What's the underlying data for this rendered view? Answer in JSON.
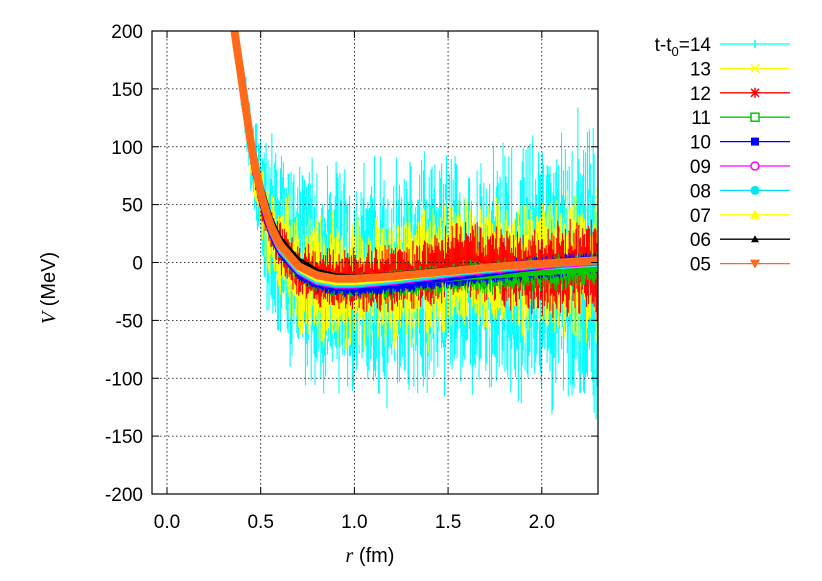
{
  "chart_data": {
    "type": "scatter",
    "title": "",
    "xlabel_var": "r",
    "xlabel_unit": "(fm)",
    "ylabel_var": "V",
    "ylabel_unit": "(MeV)",
    "xlim": [
      -0.08,
      2.3
    ],
    "ylim": [
      -200,
      200
    ],
    "xticks": [
      0.0,
      0.5,
      1.0,
      1.5,
      2.0
    ],
    "xtick_labels": [
      "0.0",
      "0.5",
      "1.0",
      "1.5",
      "2.0"
    ],
    "yticks": [
      -200,
      -150,
      -100,
      -50,
      0,
      50,
      100,
      150,
      200
    ],
    "ytick_labels": [
      "-200",
      "-150",
      "-100",
      "-50",
      "0",
      "50",
      "100",
      "150",
      "200"
    ],
    "grid": true,
    "legend_position": "outside-right",
    "legend_title_prefix": "t-t",
    "legend_title_subscript": "0",
    "legend_title_suffix": "=14",
    "series": [
      {
        "name": "14",
        "color": "#00ffff",
        "marker": "plus",
        "x": [
          0.36,
          0.4,
          0.45,
          0.5,
          0.55,
          0.6,
          0.7,
          0.8,
          0.9,
          1.0,
          1.2,
          1.4,
          1.6,
          1.8,
          2.0,
          2.2,
          2.3
        ],
        "y": [
          200,
          150,
          95,
          55,
          28,
          12,
          -6,
          -15,
          -18,
          -18,
          -15,
          -12,
          -10,
          -8,
          -6,
          -4,
          -3
        ],
        "noise": [
          10,
          25,
          45,
          60,
          75,
          85,
          90,
          95,
          95,
          95,
          95,
          95,
          95,
          100,
          110,
          120,
          125
        ]
      },
      {
        "name": "13",
        "color": "#ffff00",
        "marker": "x",
        "x": [
          0.36,
          0.4,
          0.45,
          0.5,
          0.55,
          0.6,
          0.7,
          0.8,
          0.9,
          1.0,
          1.2,
          1.4,
          1.6,
          1.8,
          2.0,
          2.2,
          2.3
        ],
        "y": [
          200,
          150,
          95,
          55,
          28,
          12,
          -6,
          -15,
          -18,
          -19,
          -15,
          -8,
          -3,
          -6,
          -5,
          -3,
          -2
        ],
        "noise": [
          8,
          15,
          25,
          32,
          40,
          45,
          50,
          55,
          55,
          55,
          55,
          60,
          60,
          55,
          55,
          60,
          60
        ]
      },
      {
        "name": "12",
        "color": "#ff0000",
        "marker": "star",
        "x": [
          0.36,
          0.4,
          0.45,
          0.5,
          0.55,
          0.6,
          0.7,
          0.8,
          0.9,
          1.0,
          1.2,
          1.4,
          1.6,
          1.8,
          2.0,
          2.2,
          2.3
        ],
        "y": [
          200,
          150,
          95,
          55,
          28,
          12,
          -5,
          -13,
          -15,
          -15,
          -13,
          -8,
          5,
          -5,
          -8,
          -6,
          -5
        ],
        "noise": [
          5,
          8,
          12,
          15,
          18,
          20,
          22,
          25,
          25,
          25,
          28,
          30,
          30,
          32,
          35,
          40,
          40
        ]
      },
      {
        "name": "11",
        "color": "#00cc00",
        "marker": "square-open",
        "x": [
          0.36,
          0.4,
          0.45,
          0.5,
          0.55,
          0.6,
          0.7,
          0.8,
          0.9,
          1.0,
          1.2,
          1.4,
          1.6,
          1.8,
          2.0,
          2.2,
          2.3
        ],
        "y": [
          200,
          152,
          96,
          55,
          27,
          10,
          -8,
          -17,
          -20,
          -21,
          -19,
          -16,
          -13,
          -11,
          -9,
          -7,
          -6
        ],
        "noise": [
          2,
          3,
          4,
          5,
          6,
          7,
          8,
          10,
          11,
          12,
          12,
          13,
          14,
          14,
          15,
          15,
          15
        ]
      },
      {
        "name": "10",
        "color": "#0000ff",
        "marker": "square-filled",
        "x": [
          0.36,
          0.4,
          0.45,
          0.5,
          0.55,
          0.6,
          0.7,
          0.8,
          0.9,
          1.0,
          1.2,
          1.4,
          1.6,
          1.8,
          2.0,
          2.2,
          2.3
        ],
        "y": [
          200,
          152,
          95,
          54,
          26,
          9,
          -10,
          -19,
          -22,
          -23,
          -20,
          -16,
          -12,
          -8,
          -4,
          -1,
          0
        ],
        "noise": [
          1,
          2,
          2,
          3,
          3,
          4,
          5,
          6,
          6,
          7,
          8,
          8,
          9,
          9,
          10,
          10,
          10
        ]
      },
      {
        "name": "09",
        "color": "#ff00ff",
        "marker": "circle-open",
        "x": [
          0.36,
          0.4,
          0.45,
          0.5,
          0.55,
          0.6,
          0.7,
          0.8,
          0.9,
          1.0,
          1.2,
          1.4,
          1.6,
          1.8,
          2.0,
          2.2,
          2.3
        ],
        "y": [
          200,
          152,
          95,
          54,
          27,
          10,
          -9,
          -18,
          -21,
          -21,
          -18,
          -14,
          -10,
          -7,
          -4,
          -2,
          -1
        ],
        "noise": [
          1,
          1,
          2,
          2,
          2,
          3,
          3,
          3,
          3,
          3,
          3,
          3,
          3,
          3,
          3,
          3,
          3
        ]
      },
      {
        "name": "08",
        "color": "#00e5ee",
        "marker": "circle-filled",
        "x": [
          0.36,
          0.4,
          0.45,
          0.5,
          0.55,
          0.6,
          0.7,
          0.8,
          0.9,
          1.0,
          1.2,
          1.4,
          1.6,
          1.8,
          2.0,
          2.2,
          2.3
        ],
        "y": [
          200,
          153,
          96,
          55,
          28,
          11,
          -8,
          -17,
          -20,
          -20,
          -17,
          -13,
          -9,
          -6,
          -3,
          -1,
          0
        ],
        "noise": [
          1,
          1,
          1,
          2,
          2,
          2,
          2,
          2,
          2,
          2,
          2,
          2,
          2,
          2,
          2,
          2,
          2
        ]
      },
      {
        "name": "07",
        "color": "#ffff00",
        "marker": "triangle",
        "x": [
          0.36,
          0.4,
          0.45,
          0.5,
          0.55,
          0.6,
          0.7,
          0.8,
          0.9,
          1.0,
          1.2,
          1.4,
          1.6,
          1.8,
          2.0,
          2.2,
          2.3
        ],
        "y": [
          200,
          154,
          98,
          57,
          30,
          13,
          -6,
          -15,
          -18,
          -18,
          -15,
          -11,
          -8,
          -5,
          -2,
          0,
          1
        ],
        "noise": [
          1,
          1,
          1,
          1,
          1,
          1,
          1,
          1,
          1,
          1,
          1,
          1,
          1,
          1,
          1,
          1,
          1
        ]
      },
      {
        "name": "06",
        "color": "#000000",
        "marker": "triangle-small",
        "x": [
          0.36,
          0.4,
          0.45,
          0.5,
          0.55,
          0.6,
          0.7,
          0.8,
          0.9,
          1.0,
          1.2,
          1.4,
          1.6,
          1.8,
          2.0,
          2.2,
          2.3
        ],
        "y": [
          200,
          160,
          108,
          68,
          40,
          22,
          3,
          -7,
          -11,
          -12,
          -10,
          -7,
          -4,
          -2,
          0,
          1,
          1
        ],
        "noise": [
          1,
          1,
          1,
          1,
          1,
          1,
          1,
          1,
          1,
          1,
          1,
          1,
          1,
          1,
          1,
          1,
          1
        ]
      },
      {
        "name": "05",
        "color": "#ff6a1a",
        "marker": "triangle-down",
        "x": [
          0.36,
          0.4,
          0.45,
          0.5,
          0.55,
          0.6,
          0.7,
          0.8,
          0.9,
          1.0,
          1.2,
          1.4,
          1.6,
          1.8,
          2.0,
          2.2,
          2.3
        ],
        "y": [
          200,
          156,
          100,
          60,
          33,
          16,
          -3,
          -11,
          -14,
          -14,
          -12,
          -9,
          -6,
          -3,
          -1,
          1,
          2
        ],
        "noise": [
          2,
          2,
          2,
          2,
          2,
          3,
          3,
          3,
          3,
          3,
          3,
          3,
          3,
          3,
          3,
          3,
          3
        ]
      }
    ]
  }
}
